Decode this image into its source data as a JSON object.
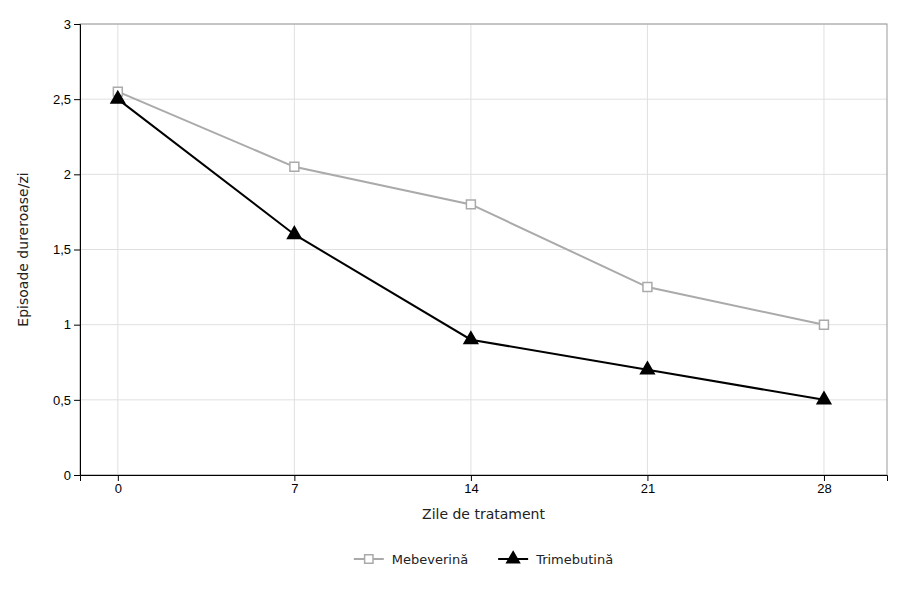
{
  "chart_data": {
    "type": "line",
    "xlabel": "Zile de tratament",
    "ylabel": "Episoade dureroase/zi",
    "x": [
      0,
      7,
      14,
      21,
      28
    ],
    "xlim": [
      -1.5,
      30.5
    ],
    "xticks": [
      0,
      7,
      14,
      21,
      28
    ],
    "ylim": [
      0,
      3
    ],
    "yticks": [
      0,
      {
        "value": 0.5,
        "label": "0,5"
      },
      1,
      {
        "value": 1.5,
        "label": "1,5"
      },
      2,
      {
        "value": 2.5,
        "label": "2,5"
      },
      3
    ],
    "grid": true,
    "legend": "bottom",
    "series": [
      {
        "name": "Mebeverină",
        "color": "#aaaaaa",
        "marker": "square",
        "line_style": "solid",
        "values": [
          2.55,
          2.05,
          1.8,
          1.25,
          1.0
        ]
      },
      {
        "name": "Trimebutină",
        "color": "#000000",
        "marker": "triangle",
        "line_style": "solid",
        "values": [
          2.5,
          1.6,
          0.9,
          0.7,
          0.5
        ]
      }
    ]
  }
}
